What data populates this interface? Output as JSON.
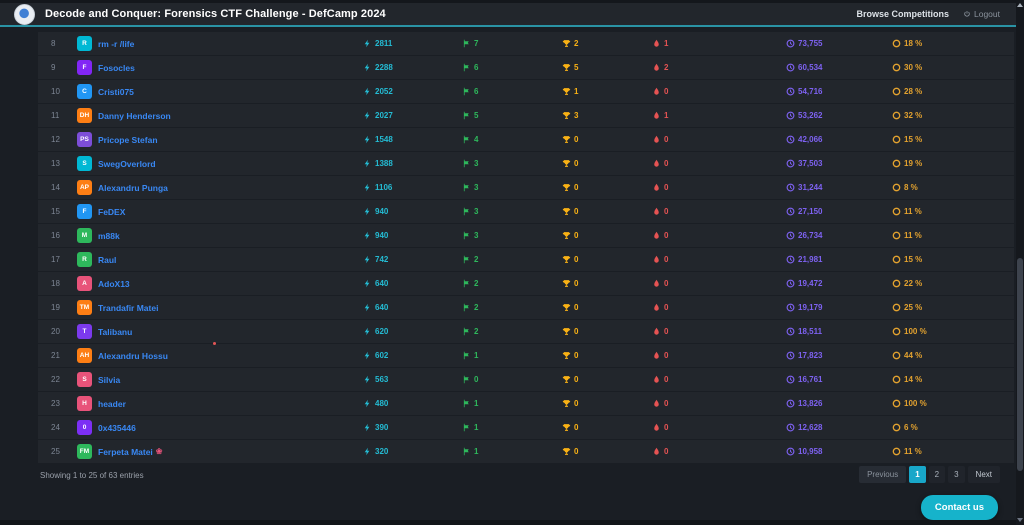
{
  "navbar": {
    "title": "Decode and Conquer: Forensics CTF Challenge - DefCamp 2024",
    "browse_label": "Browse Competitions",
    "logout_label": "Logout"
  },
  "icons": {
    "score": "lightning-icon",
    "flags": "flag-icon",
    "trophies": "trophy-icon",
    "bloods": "blood-drop-icon",
    "time": "clock-icon",
    "accuracy": "coin-icon",
    "logout": "power-icon"
  },
  "colors": {
    "accent": "#18a7c9",
    "navbar_underline": "#2a93a5",
    "row_background": "#22262c",
    "name_link": "#3988f4",
    "score": "#24bcd4",
    "flags": "#2eb85c",
    "trophies": "#f9b115",
    "bloods": "#e55353",
    "time": "#7e62f2",
    "accuracy": "#e3a22f"
  },
  "table": {
    "rows": [
      {
        "rank": "8",
        "initials": "R",
        "color": "#00b8d4",
        "name": "rm -r /life",
        "decoration": "",
        "score": "2811",
        "flags": "7",
        "trophies": "2",
        "bloods": "1",
        "time": "73,755",
        "accuracy": "18 %"
      },
      {
        "rank": "9",
        "initials": "F",
        "color": "#8226f5",
        "name": "Fosocles",
        "decoration": "",
        "score": "2288",
        "flags": "6",
        "trophies": "5",
        "bloods": "2",
        "time": "60,534",
        "accuracy": "30 %"
      },
      {
        "rank": "10",
        "initials": "C",
        "color": "#2196f3",
        "name": "Cristi075",
        "decoration": "",
        "score": "2052",
        "flags": "6",
        "trophies": "1",
        "bloods": "0",
        "time": "54,716",
        "accuracy": "28 %"
      },
      {
        "rank": "11",
        "initials": "DH",
        "color": "#fd7e14",
        "name": "Danny Henderson",
        "decoration": "",
        "score": "2027",
        "flags": "5",
        "trophies": "3",
        "bloods": "1",
        "time": "53,262",
        "accuracy": "32 %"
      },
      {
        "rank": "12",
        "initials": "PS",
        "color": "#7d4ed8",
        "name": "Pricope Stefan",
        "decoration": "",
        "score": "1548",
        "flags": "4",
        "trophies": "0",
        "bloods": "0",
        "time": "42,066",
        "accuracy": "15 %"
      },
      {
        "rank": "13",
        "initials": "S",
        "color": "#00b8d4",
        "name": "SwegOverlord",
        "decoration": "",
        "score": "1388",
        "flags": "3",
        "trophies": "0",
        "bloods": "0",
        "time": "37,503",
        "accuracy": "19 %"
      },
      {
        "rank": "14",
        "initials": "AP",
        "color": "#fd7e14",
        "name": "Alexandru Punga",
        "decoration": "",
        "score": "1106",
        "flags": "3",
        "trophies": "0",
        "bloods": "0",
        "time": "31,244",
        "accuracy": "8 %"
      },
      {
        "rank": "15",
        "initials": "F",
        "color": "#2196f3",
        "name": "FeDEX",
        "decoration": "",
        "score": "940",
        "flags": "3",
        "trophies": "0",
        "bloods": "0",
        "time": "27,150",
        "accuracy": "11 %"
      },
      {
        "rank": "16",
        "initials": "M",
        "color": "#2eb85c",
        "name": "m88k",
        "decoration": "",
        "score": "940",
        "flags": "3",
        "trophies": "0",
        "bloods": "0",
        "time": "26,734",
        "accuracy": "11 %"
      },
      {
        "rank": "17",
        "initials": "R",
        "color": "#2eb85c",
        "name": "Raul",
        "decoration": "",
        "score": "742",
        "flags": "2",
        "trophies": "0",
        "bloods": "0",
        "time": "21,981",
        "accuracy": "15 %"
      },
      {
        "rank": "18",
        "initials": "A",
        "color": "#e8537a",
        "name": "AdoX13",
        "decoration": "",
        "score": "640",
        "flags": "2",
        "trophies": "0",
        "bloods": "0",
        "time": "19,472",
        "accuracy": "22 %"
      },
      {
        "rank": "19",
        "initials": "TM",
        "color": "#fd7e14",
        "name": "Trandafir Matei",
        "decoration": "",
        "score": "640",
        "flags": "2",
        "trophies": "0",
        "bloods": "0",
        "time": "19,179",
        "accuracy": "25 %"
      },
      {
        "rank": "20",
        "initials": "T",
        "color": "#7c3aed",
        "name": "Talibanu",
        "decoration": "",
        "score": "620",
        "flags": "2",
        "trophies": "0",
        "bloods": "0",
        "time": "18,511",
        "accuracy": "100 %"
      },
      {
        "rank": "21",
        "initials": "AH",
        "color": "#fd7e14",
        "name": "Alexandru Hossu",
        "decoration": "",
        "score": "602",
        "flags": "1",
        "trophies": "0",
        "bloods": "0",
        "time": "17,823",
        "accuracy": "44 %"
      },
      {
        "rank": "22",
        "initials": "S",
        "color": "#e8537a",
        "name": "Silvia",
        "decoration": "",
        "score": "563",
        "flags": "0",
        "trophies": "0",
        "bloods": "0",
        "time": "16,761",
        "accuracy": "14 %"
      },
      {
        "rank": "23",
        "initials": "H",
        "color": "#e8537a",
        "name": "header",
        "decoration": "",
        "score": "480",
        "flags": "1",
        "trophies": "0",
        "bloods": "0",
        "time": "13,826",
        "accuracy": "100 %"
      },
      {
        "rank": "24",
        "initials": "0",
        "color": "#7c2ff5",
        "name": "0x435446",
        "decoration": "",
        "score": "390",
        "flags": "1",
        "trophies": "0",
        "bloods": "0",
        "time": "12,628",
        "accuracy": "6 %"
      },
      {
        "rank": "25",
        "initials": "FM",
        "color": "#2eb85c",
        "name": "Ferpeta Matei",
        "decoration": "❀",
        "score": "320",
        "flags": "1",
        "trophies": "0",
        "bloods": "0",
        "time": "10,958",
        "accuracy": "11 %"
      }
    ]
  },
  "footer": {
    "showing_text": "Showing 1 to 25 of 63 entries",
    "pagination": {
      "previous": "Previous",
      "pages": [
        "1",
        "2",
        "3"
      ],
      "active_page": "1",
      "next": "Next"
    }
  },
  "contact_button": "Contact us"
}
